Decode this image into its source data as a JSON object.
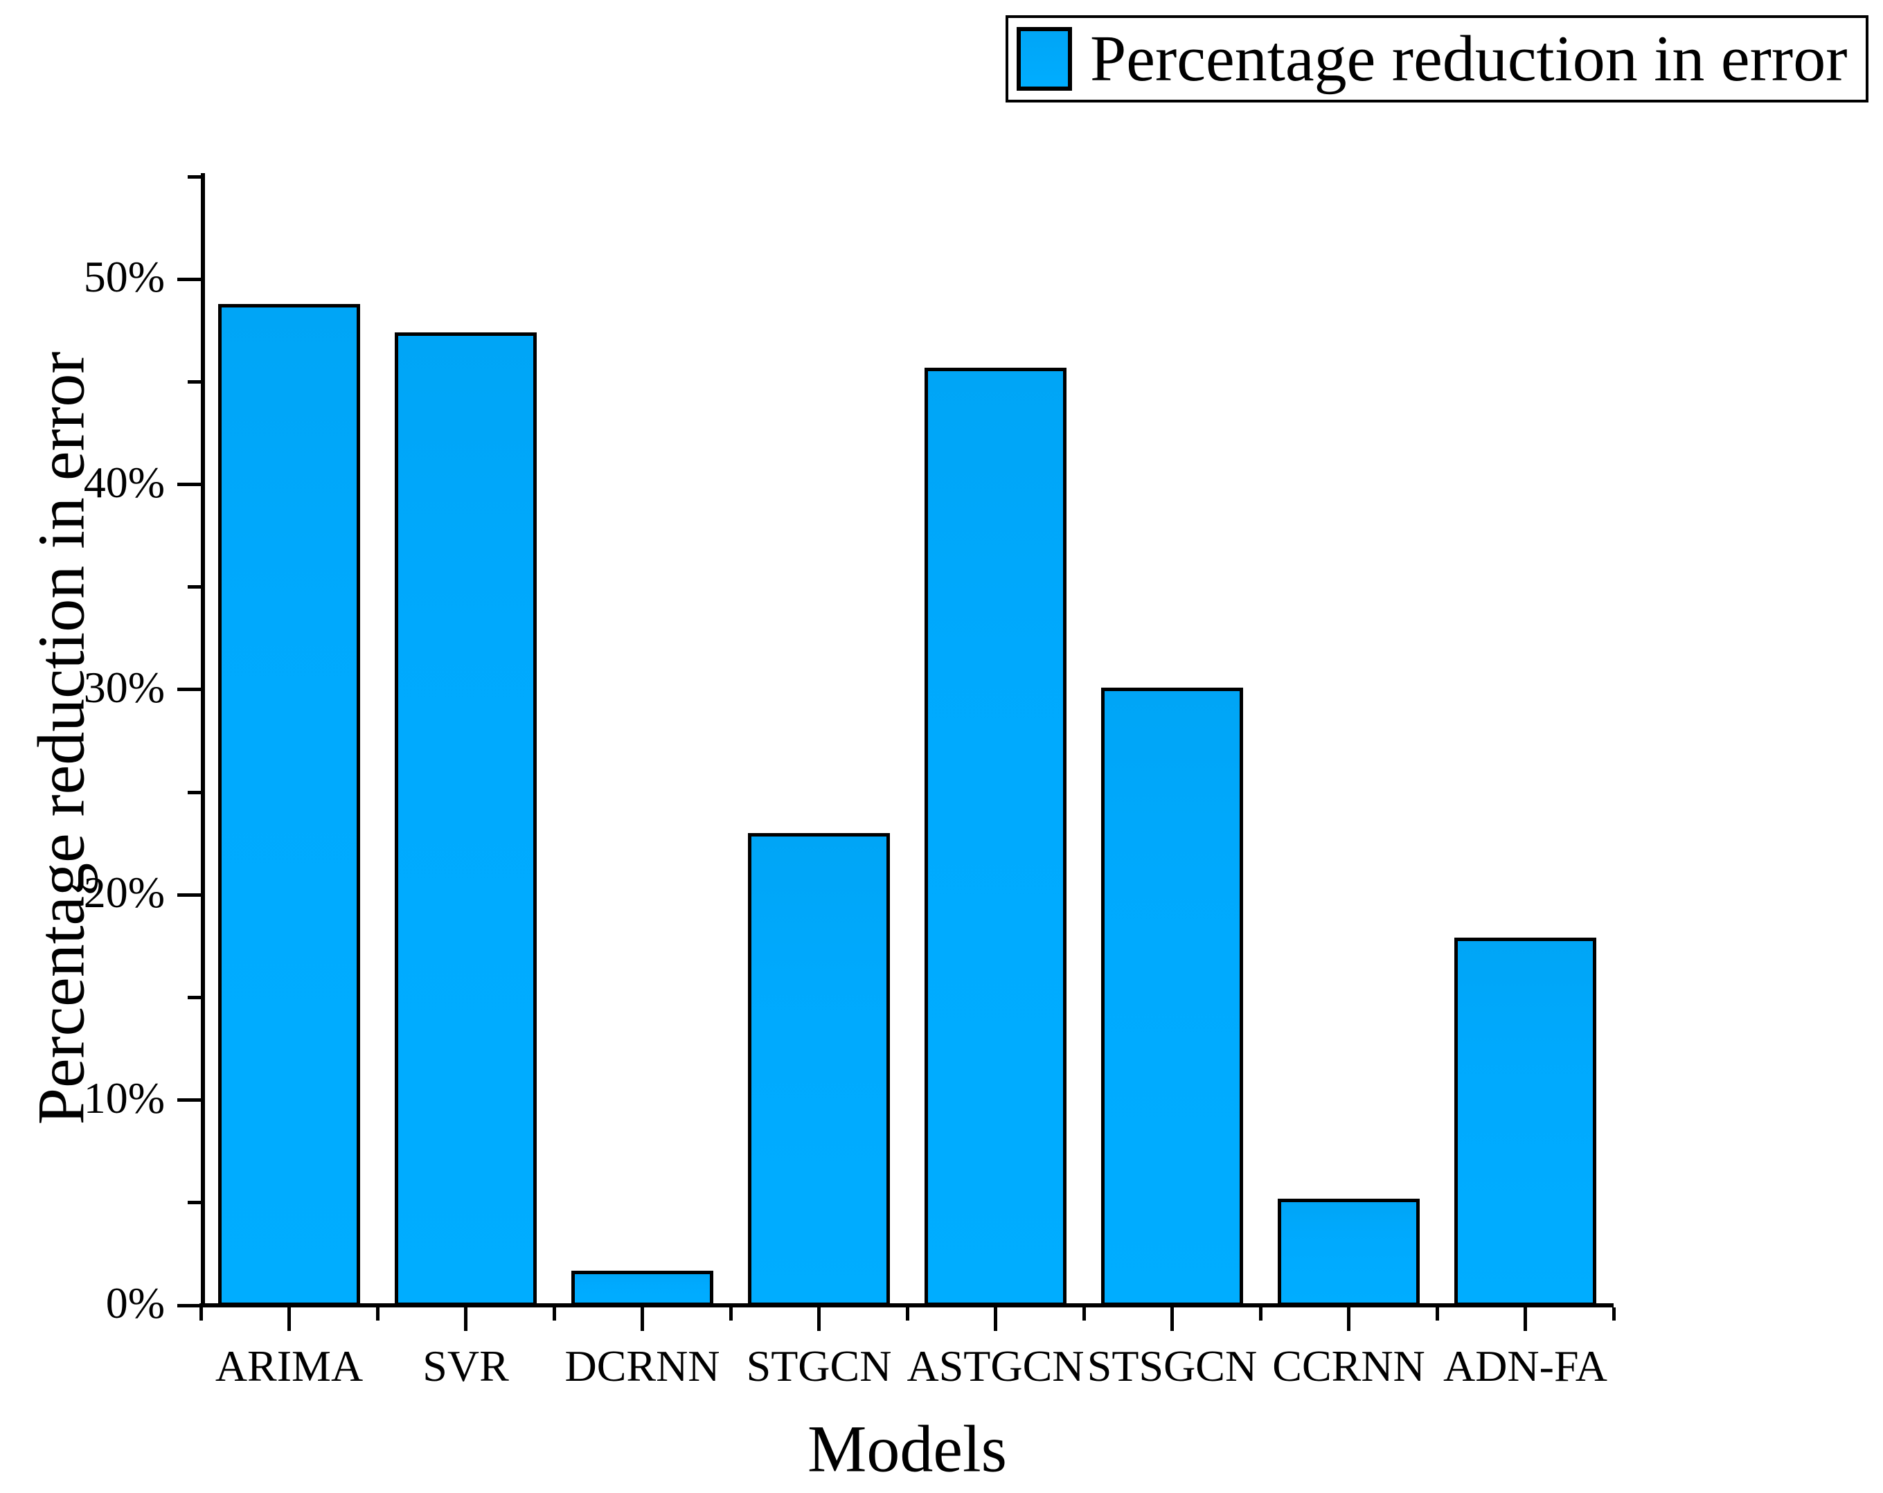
{
  "chart_data": {
    "type": "bar",
    "title": "",
    "categories": [
      "ARIMA",
      "SVR",
      "DCRNN",
      "STGCN",
      "ASTGCN",
      "STSGCN",
      "CCRNN",
      "ADN-FA"
    ],
    "values": [
      48.7,
      47.3,
      1.6,
      22.9,
      45.6,
      30.0,
      5.1,
      17.8
    ],
    "xlabel": "Models",
    "ylabel": "Percentage reduction in error",
    "ylim": [
      0,
      55
    ],
    "ytick_major_interval": 10,
    "ytick_minor_interval": 5,
    "ytick_labels": [
      "0%",
      "10%",
      "20%",
      "30%",
      "40%",
      "50%"
    ],
    "grid": false,
    "legend": {
      "label": "Percentage reduction in error",
      "position": "top-right",
      "swatch_color": "#00a9ff"
    },
    "bar_color": "#00a9ff",
    "bar_border_color": "#000000",
    "axis_color": "#000000",
    "background_color": "#ffffff"
  }
}
